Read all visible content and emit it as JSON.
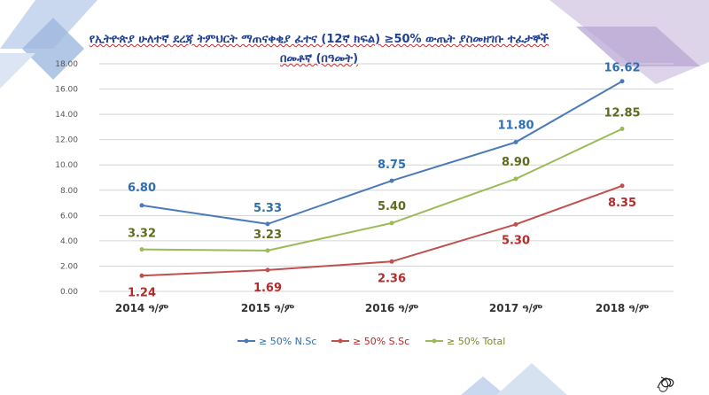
{
  "chart_data": {
    "type": "line",
    "title_line1": "የኢትዮጵያ ሁለተኛ ደረጃ ትምህርት ማጠናቀቂያ ፈተና (12ኛ ክፍል) ≥50% ውጤት ያስመዘገቡ ተፈታኞች",
    "title_line2": "በመቶኛ (በዓመት)",
    "categories": [
      "2014 ዓ/ም",
      "2015 ዓ/ም",
      "2016 ዓ/ም",
      "2017 ዓ/ም",
      "2018 ዓ/ም"
    ],
    "ylim": [
      0,
      18
    ],
    "yticks": [
      "0.00",
      "2.00",
      "4.00",
      "6.00",
      "8.00",
      "10.00",
      "12.00",
      "14.00",
      "16.00",
      "18.00"
    ],
    "grid": true,
    "legend_position": "bottom",
    "series": [
      {
        "name": "≥ 50% N.Sc",
        "color": "#4a7ab8",
        "label_color": "#2e6fb0",
        "values": [
          6.8,
          5.33,
          8.75,
          11.8,
          16.62
        ],
        "labels": [
          "6.80",
          "5.33",
          "8.75",
          "11.80",
          "16.62"
        ]
      },
      {
        "name": "≥ 50%  S.Sc",
        "color": "#c0504d",
        "label_color": "#b52a2a",
        "values": [
          1.24,
          1.69,
          2.36,
          5.3,
          8.35
        ],
        "labels": [
          "1.24",
          "1.69",
          "2.36",
          "5.30",
          "8.35"
        ]
      },
      {
        "name": "≥ 50%  Total",
        "color": "#9bbb59",
        "label_color": "#5e6b1e",
        "values": [
          3.32,
          3.23,
          5.4,
          8.9,
          12.85
        ],
        "labels": [
          "3.32",
          "3.23",
          "5.40",
          "8.90",
          "12.85"
        ]
      }
    ]
  }
}
